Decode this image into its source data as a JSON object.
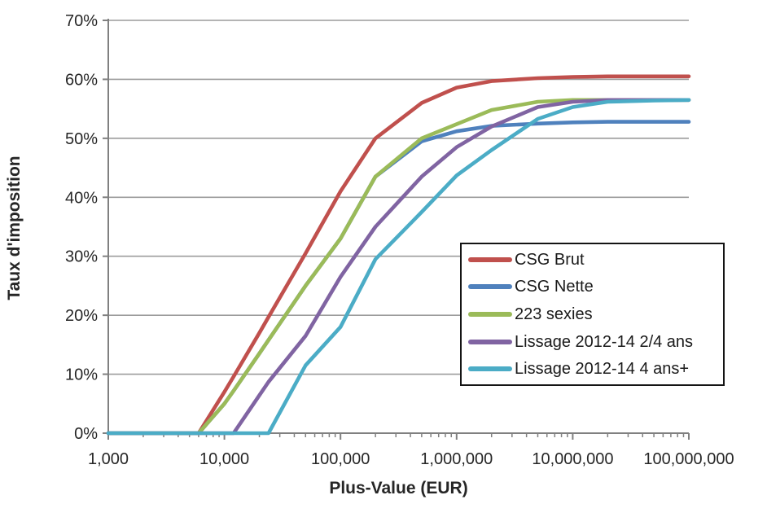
{
  "chart_data": {
    "type": "line",
    "xlabel": "Plus-Value (EUR)",
    "ylabel": "Taux d'imposition",
    "x_scale": "log",
    "grid": "horizontal",
    "legend_position": "middle-right",
    "xlim": [
      1000,
      100000000
    ],
    "ylim": [
      0,
      70
    ],
    "x_ticks": [
      "1,000",
      "10,000",
      "100,000",
      "1,000,000",
      "10,000,000",
      "100,000,000"
    ],
    "x_tick_values": [
      1000,
      10000,
      100000,
      1000000,
      10000000,
      100000000
    ],
    "y_ticks": [
      "0%",
      "10%",
      "20%",
      "30%",
      "40%",
      "50%",
      "60%",
      "70%"
    ],
    "y_tick_values": [
      0,
      10,
      20,
      30,
      40,
      50,
      60,
      70
    ],
    "x": [
      1000,
      2000,
      5000,
      6000,
      10000,
      12000,
      20000,
      24000,
      50000,
      100000,
      200000,
      500000,
      1000000,
      2000000,
      5000000,
      10000000,
      20000000,
      50000000,
      100000000
    ],
    "series": [
      {
        "name": "CSG Brut",
        "color": "#C0504D",
        "values": [
          0,
          0,
          0,
          0,
          7,
          9.6,
          17,
          19.7,
          30.5,
          41,
          50,
          56,
          58.6,
          59.7,
          60.2,
          60.4,
          60.5,
          60.5,
          60.5
        ]
      },
      {
        "name": "CSG Nette",
        "color": "#4F81BD",
        "values": [
          0,
          0,
          0,
          0,
          5,
          7.2,
          13.5,
          15.8,
          25,
          33,
          43.5,
          49.5,
          51.2,
          52.1,
          52.5,
          52.7,
          52.8,
          52.8,
          52.8
        ]
      },
      {
        "name": "223 sexies",
        "color": "#9BBB59",
        "values": [
          0,
          0,
          0,
          0,
          5,
          7.2,
          13.5,
          15.8,
          25,
          33,
          43.5,
          50,
          52.4,
          54.8,
          56.2,
          56.5,
          56.5,
          56.5,
          56.5
        ]
      },
      {
        "name": "Lissage 2012-14 2/4 ans",
        "color": "#8064A2",
        "values": [
          0,
          0,
          0,
          0,
          0,
          0,
          6.4,
          8.7,
          16.5,
          26.5,
          35,
          43.5,
          48.5,
          52,
          55.3,
          56.2,
          56.5,
          56.5,
          56.5
        ]
      },
      {
        "name": "Lissage 2012-14 4 ans+",
        "color": "#4BACC6",
        "values": [
          0,
          0,
          0,
          0,
          0,
          0,
          0,
          0,
          11.5,
          18,
          29.5,
          37.5,
          43.7,
          48,
          53.3,
          55.3,
          56.2,
          56.4,
          56.5
        ]
      }
    ],
    "colors": {
      "gridline": "#9c9c9c",
      "axis": "#808080",
      "tick_label": "#262626"
    }
  }
}
